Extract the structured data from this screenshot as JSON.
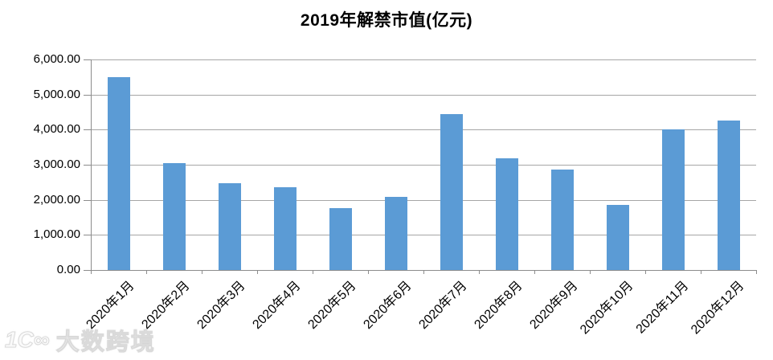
{
  "chart_data": {
    "type": "bar",
    "title": "2019年解禁市值(亿元)",
    "categories": [
      "2020年1月",
      "2020年2月",
      "2020年3月",
      "2020年4月",
      "2020年5月",
      "2020年6月",
      "2020年7月",
      "2020年8月",
      "2020年9月",
      "2020年10月",
      "2020年11月",
      "2020年12月"
    ],
    "values": [
      5500,
      3050,
      2480,
      2370,
      1770,
      2080,
      4440,
      3180,
      2860,
      1850,
      4010,
      4250
    ],
    "xlabel": "",
    "ylabel": "",
    "ylim": [
      0,
      6000
    ],
    "ytick_step": 1000,
    "ytick_labels": [
      "0.00",
      "1,000.00",
      "2,000.00",
      "3,000.00",
      "4,000.00",
      "5,000.00",
      "6,000.00"
    ],
    "grid": true,
    "legend_position": "none",
    "bar_color": "#5B9BD5",
    "gridline_color": "#A6A6A6",
    "axis_color": "#8C8C8C",
    "text_color": "#000000"
  },
  "watermark": {
    "logo": "1C∞",
    "text": "大数跨境"
  }
}
